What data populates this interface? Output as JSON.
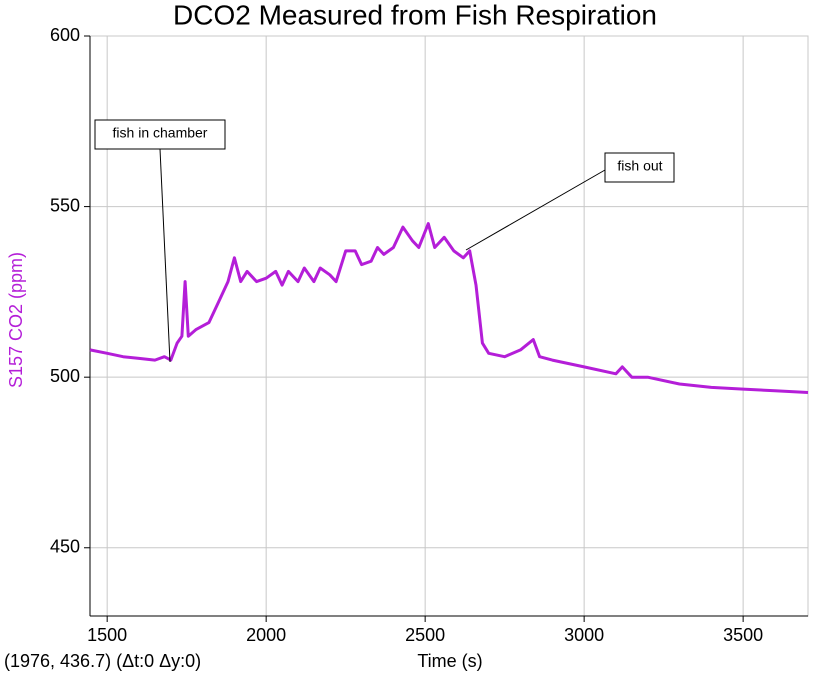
{
  "chart_data": {
    "type": "line",
    "title": "DCO2 Measured from Fish Respiration",
    "x_label": "Time (s)",
    "y_label": "S157 CO2 (ppm)",
    "cursor_readout": "(1976, 436.7) (Δt:0 Δy:0)",
    "color": "#b41ed8",
    "x": [
      1446,
      1500,
      1550,
      1600,
      1650,
      1680,
      1700,
      1720,
      1735,
      1745,
      1755,
      1780,
      1820,
      1850,
      1880,
      1900,
      1920,
      1940,
      1970,
      2000,
      2030,
      2050,
      2070,
      2100,
      2120,
      2150,
      2170,
      2200,
      2220,
      2250,
      2280,
      2300,
      2330,
      2350,
      2370,
      2400,
      2430,
      2460,
      2480,
      2510,
      2530,
      2560,
      2590,
      2620,
      2640,
      2660,
      2680,
      2700,
      2750,
      2800,
      2840,
      2860,
      2900,
      3000,
      3100,
      3120,
      3150,
      3200,
      3300,
      3400,
      3500,
      3600,
      3704
    ],
    "values": [
      508,
      507,
      506,
      505.5,
      505,
      506,
      505,
      510,
      512,
      528,
      512,
      514,
      516,
      522,
      528,
      535,
      528,
      531,
      528,
      529,
      531,
      527,
      531,
      528,
      532,
      528,
      532,
      530,
      528,
      537,
      537,
      533,
      534,
      538,
      536,
      538,
      544,
      540,
      538,
      545,
      538,
      541,
      537,
      535,
      537,
      527,
      510,
      507,
      506,
      508,
      511,
      506,
      505,
      503,
      501,
      503,
      500,
      500,
      498,
      497,
      496.5,
      496,
      495.5
    ],
    "xlim": [
      1446,
      3704
    ],
    "ylim": [
      430,
      600
    ],
    "xticks": [
      1500,
      2000,
      2500,
      3000,
      3500
    ],
    "yticks": [
      450,
      500,
      550,
      600
    ],
    "grid": true,
    "annotations": [
      {
        "text": "fish in chamber"
      },
      {
        "text": "fish out"
      }
    ]
  }
}
